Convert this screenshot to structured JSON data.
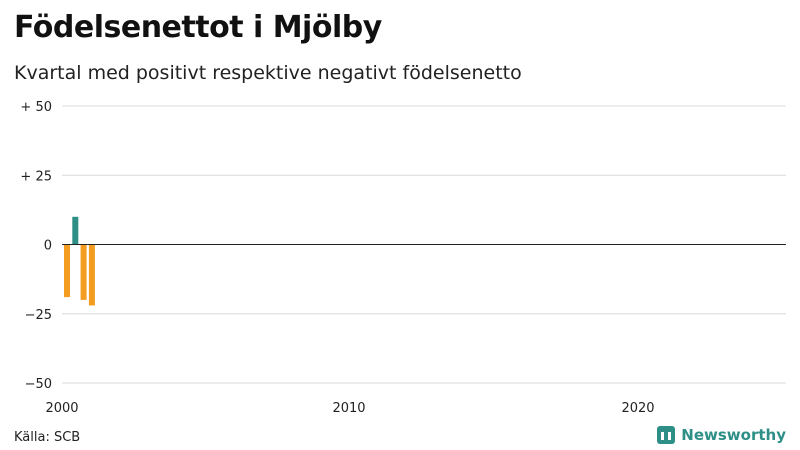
{
  "header": {
    "title": "Födelsenettot i Mjölby",
    "subtitle": "Kvartal med positivt respektive negativt födelsenetto"
  },
  "footer": {
    "source": "Källa: SCB",
    "brand": "Newsworthy",
    "brand_icon": "bar-chart-icon"
  },
  "chart_data": {
    "type": "bar",
    "title": "Födelsenettot i Mjölby",
    "subtitle": "Kvartal med positivt respektive negativt födelsenetto",
    "xlabel": "",
    "ylabel": "",
    "ylim": [
      -50,
      50
    ],
    "yticks": [
      50,
      25,
      0,
      -25,
      -50
    ],
    "ytick_labels": [
      "+ 50",
      "+ 25",
      "0",
      "−25",
      "−50"
    ],
    "xticks": [
      "2000",
      "2010",
      "2020"
    ],
    "categories": [
      "2000 Q1",
      "2000 Q2",
      "2000 Q3",
      "2000 Q4"
    ],
    "values": [
      -19,
      10,
      -20,
      -22
    ],
    "colors": {
      "positive": "#2e8f86",
      "negative": "#f39c1f"
    },
    "grid": true
  }
}
